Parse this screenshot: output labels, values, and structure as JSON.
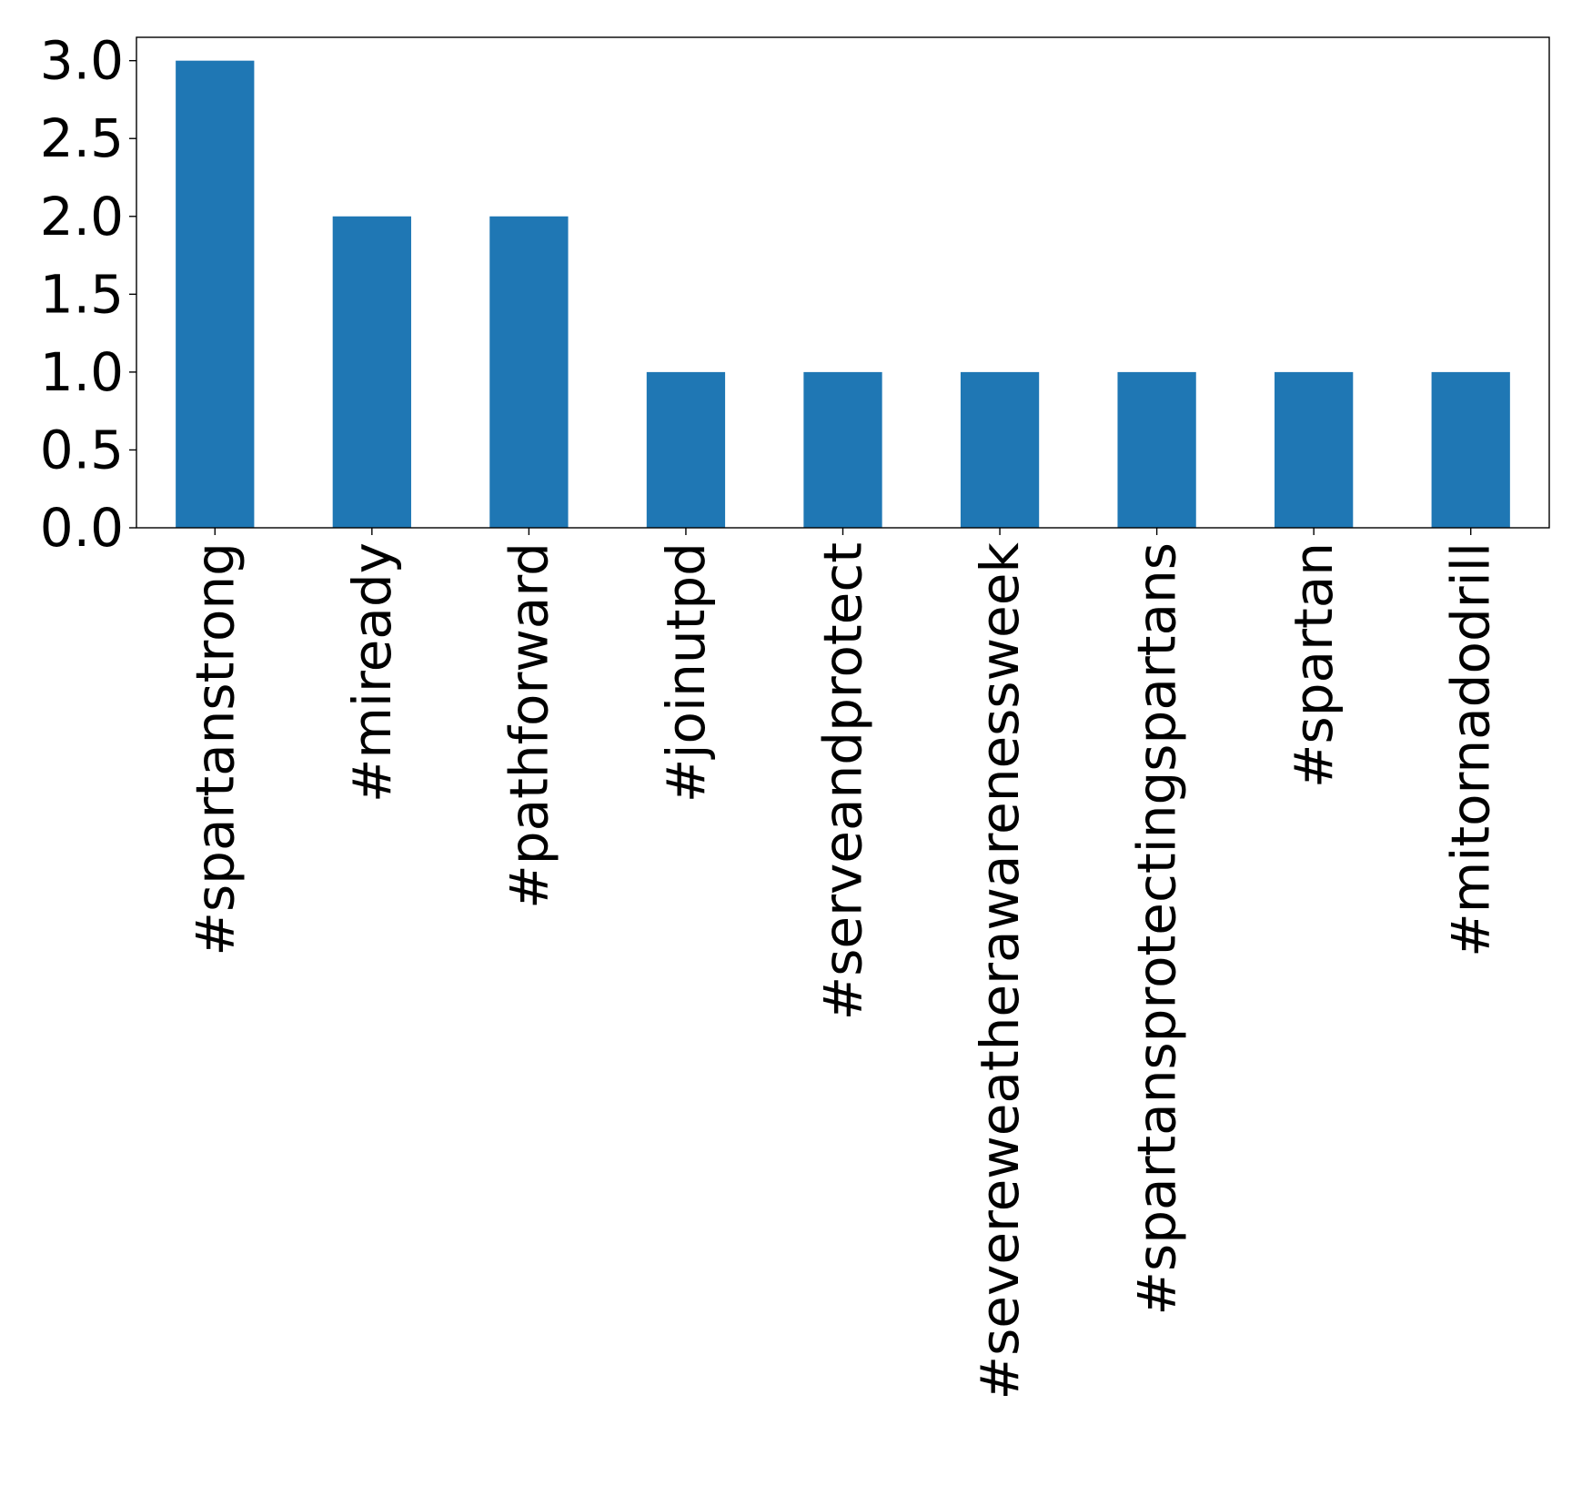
{
  "chart_data": {
    "type": "bar",
    "title": "",
    "xlabel": "",
    "ylabel": "",
    "categories": [
      "#spartanstrong",
      "#miready",
      "#pathforward",
      "#joinutpd",
      "#serveandprotect",
      "#severeweatherawarenessweek",
      "#spartansprotectingspartans",
      "#spartan",
      "#mitornadodrill"
    ],
    "values": [
      3,
      2,
      2,
      1,
      1,
      1,
      1,
      1,
      1
    ],
    "ylim": [
      0,
      3.15
    ],
    "yticks": [
      "0.0",
      "0.5",
      "1.0",
      "1.5",
      "2.0",
      "2.5",
      "3.0"
    ],
    "legend": "none",
    "grid": false,
    "colors": {
      "bar": "#1f77b4",
      "axis": "#000000",
      "background": "#ffffff"
    }
  }
}
